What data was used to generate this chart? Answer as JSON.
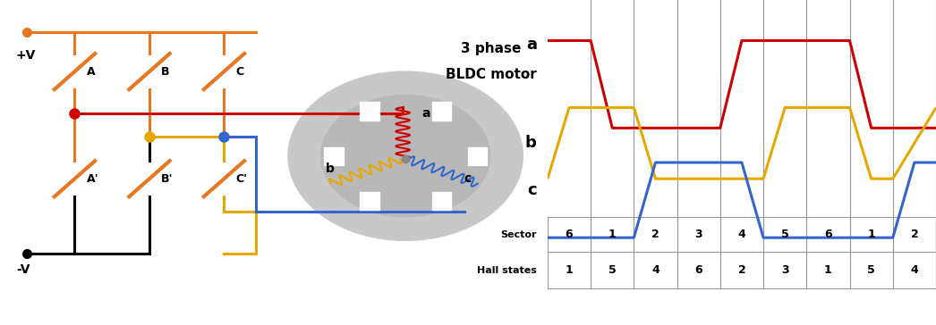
{
  "waveform_color_a": "#cc0000",
  "waveform_color_b": "#e6a800",
  "waveform_color_c": "#3366cc",
  "orange_color": "#e87722",
  "grid_color": "#999999",
  "bg_color": "#ffffff",
  "waveform_lw": 2.2,
  "sector_row": [
    "6",
    "1",
    "2",
    "3",
    "4",
    "5",
    "6",
    "1",
    "2"
  ],
  "hall_row": [
    "1",
    "5",
    "4",
    "6",
    "2",
    "3",
    "1",
    "5",
    "4"
  ]
}
